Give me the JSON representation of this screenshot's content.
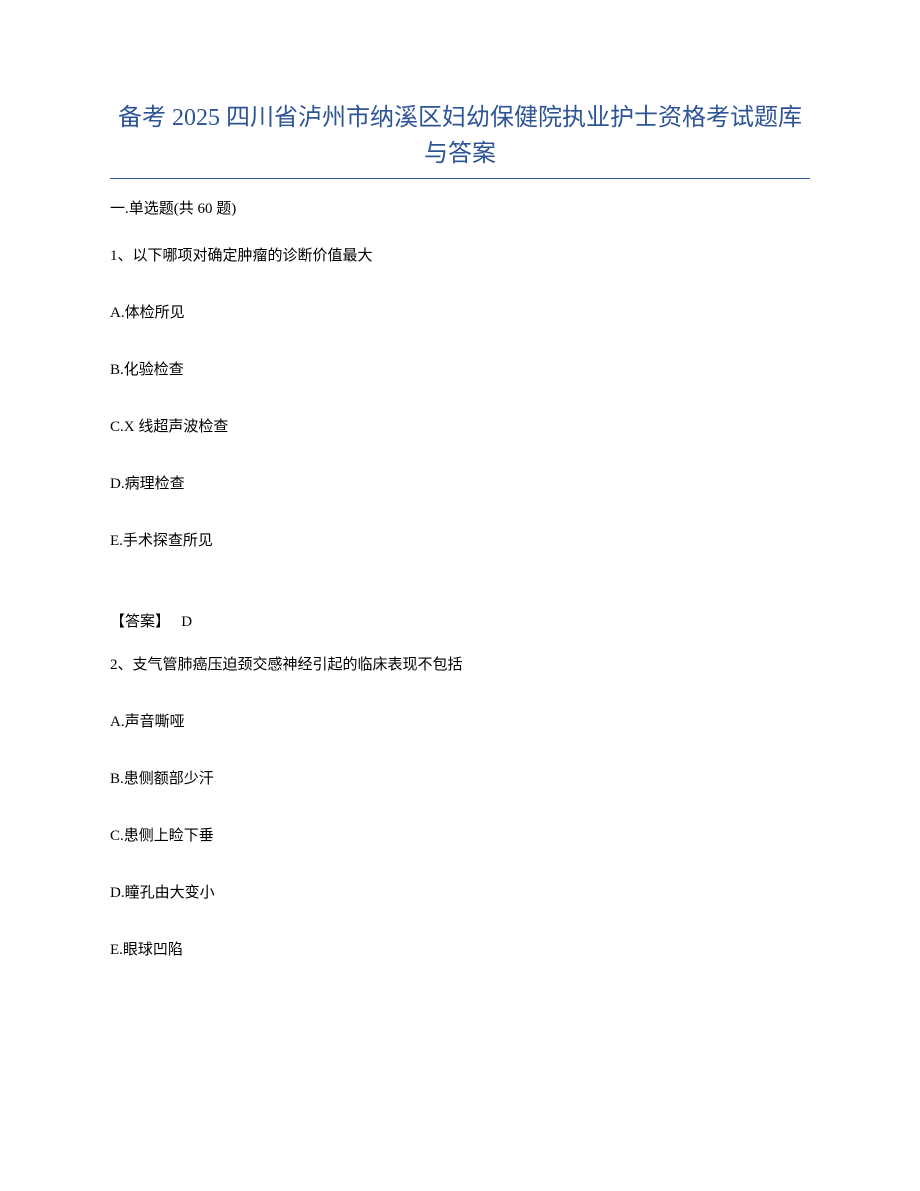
{
  "title": "备考 2025 四川省泸州市纳溪区妇幼保健院执业护士资格考试题库与答案",
  "title_color": "#2e5496",
  "title_fontsize": 24,
  "border_color": "#2e5496",
  "body_text_color": "#000000",
  "body_fontsize": 15,
  "section_header": "一.单选题(共 60 题)",
  "questions": [
    {
      "number": "1",
      "stem": "1、以下哪项对确定肿瘤的诊断价值最大",
      "options": [
        "A.体检所见",
        "B.化验检查",
        "C.X 线超声波检查",
        "D.病理检查",
        "E.手术探查所见"
      ],
      "answer_label": "【答案】",
      "answer_value": "D"
    },
    {
      "number": "2",
      "stem": "2、支气管肺癌压迫颈交感神经引起的临床表现不包括",
      "options": [
        "A.声音嘶哑",
        "B.患侧额部少汗",
        "C.患侧上睑下垂",
        "D.瞳孔由大变小",
        "E.眼球凹陷"
      ]
    }
  ]
}
